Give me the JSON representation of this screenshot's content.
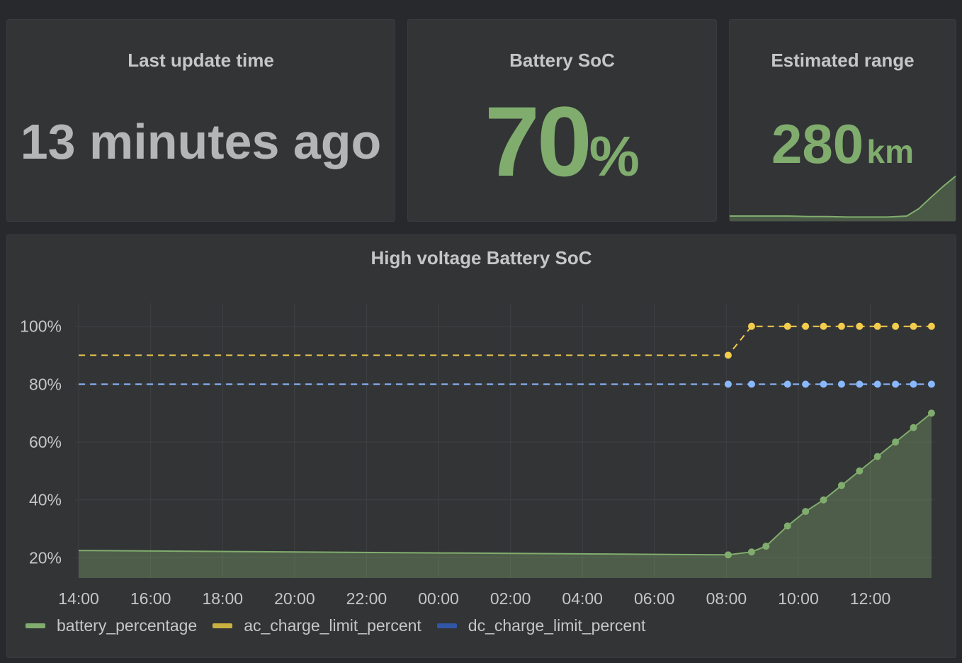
{
  "panels": {
    "last_update": {
      "title": "Last update time",
      "value": "13 minutes ago"
    },
    "battery_soc": {
      "title": "Battery SoC",
      "value": "70",
      "unit": "%"
    },
    "estimated_range": {
      "title": "Estimated range",
      "value": "280",
      "unit": "km",
      "sparkline": [
        200,
        200,
        200,
        200,
        199,
        199,
        198,
        198,
        198,
        200,
        215,
        238,
        260,
        280
      ]
    }
  },
  "colors": {
    "battery_percentage": "#80ad6e",
    "ac_charge_limit_percent": "#f2cc4d",
    "dc_charge_limit_percent": "#8ab8ff",
    "legend_ac": "#c8b23f",
    "legend_dc": "#3156a6",
    "grid": "#3f4043",
    "text": "#c5c6c8"
  },
  "chart_data": {
    "type": "line",
    "title": "High voltage Battery SoC",
    "x_ticks": [
      "14:00",
      "16:00",
      "18:00",
      "20:00",
      "22:00",
      "00:00",
      "02:00",
      "04:00",
      "06:00",
      "08:00",
      "10:00",
      "12:00"
    ],
    "y_ticks": [
      "20%",
      "40%",
      "60%",
      "80%",
      "100%"
    ],
    "y_tick_values": [
      20,
      40,
      60,
      80,
      100
    ],
    "x_range_hours": [
      -0.1,
      23.8
    ],
    "y_range": [
      13,
      108
    ],
    "grid": true,
    "legend_position": "bottom-left",
    "series": [
      {
        "name": "battery_percentage",
        "style": "solid-area",
        "points": [
          [
            0,
            22.5
          ],
          [
            18.05,
            21
          ],
          [
            18.7,
            22
          ],
          [
            19.1,
            24
          ],
          [
            19.7,
            31
          ],
          [
            20.2,
            36
          ],
          [
            20.7,
            40
          ],
          [
            21.2,
            45
          ],
          [
            21.7,
            50
          ],
          [
            22.2,
            55
          ],
          [
            22.7,
            60
          ],
          [
            23.2,
            65
          ],
          [
            23.7,
            70
          ]
        ],
        "marker_from_index": 1
      },
      {
        "name": "ac_charge_limit_percent",
        "style": "dashed",
        "points": [
          [
            0,
            90
          ],
          [
            18.05,
            90
          ],
          [
            18.7,
            100
          ],
          [
            19.7,
            100
          ],
          [
            20.2,
            100
          ],
          [
            20.7,
            100
          ],
          [
            21.2,
            100
          ],
          [
            21.7,
            100
          ],
          [
            22.2,
            100
          ],
          [
            22.7,
            100
          ],
          [
            23.2,
            100
          ],
          [
            23.7,
            100
          ]
        ],
        "marker_from_index": 1
      },
      {
        "name": "dc_charge_limit_percent",
        "style": "dashed",
        "points": [
          [
            0,
            80
          ],
          [
            18.05,
            80
          ],
          [
            18.7,
            80
          ],
          [
            19.7,
            80
          ],
          [
            20.2,
            80
          ],
          [
            20.7,
            80
          ],
          [
            21.2,
            80
          ],
          [
            21.7,
            80
          ],
          [
            22.2,
            80
          ],
          [
            22.7,
            80
          ],
          [
            23.2,
            80
          ],
          [
            23.7,
            80
          ]
        ],
        "marker_from_index": 1
      }
    ]
  },
  "legend": [
    {
      "label": "battery_percentage",
      "key": "battery_percentage"
    },
    {
      "label": "ac_charge_limit_percent",
      "key": "legend_ac"
    },
    {
      "label": "dc_charge_limit_percent",
      "key": "legend_dc"
    }
  ]
}
